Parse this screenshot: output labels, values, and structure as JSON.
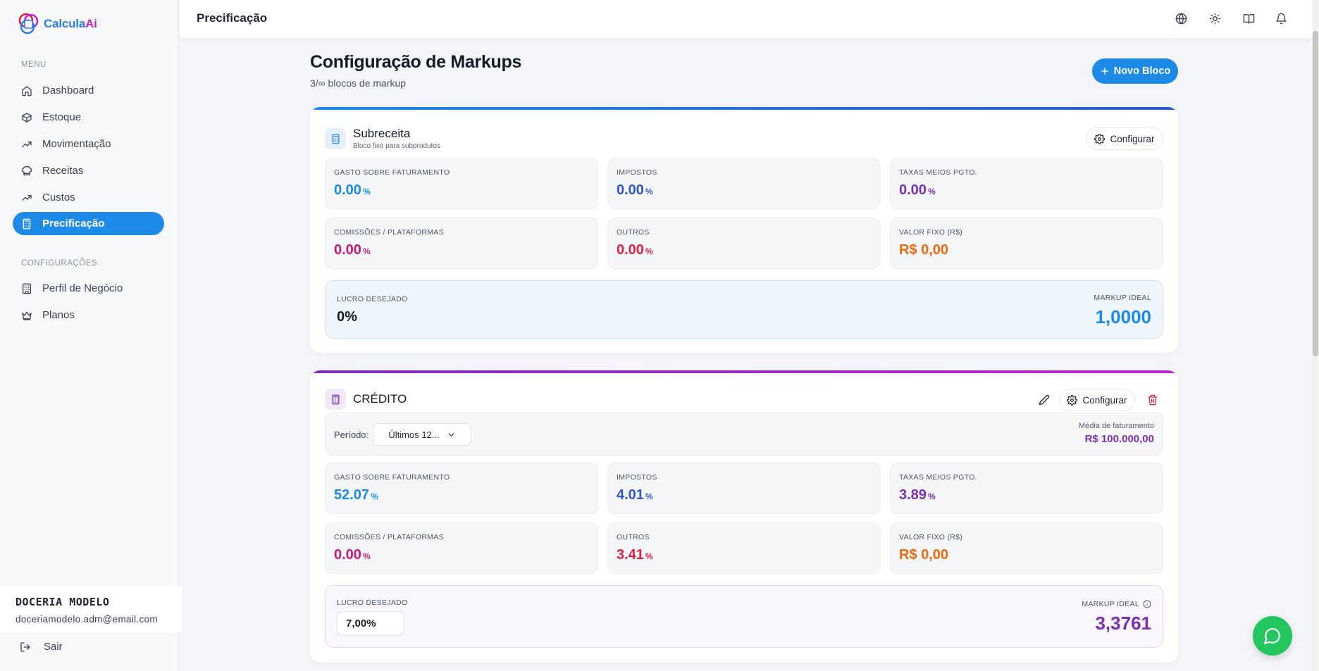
{
  "app": {
    "name_part1": "Calcula",
    "name_part2": "Ai"
  },
  "sidebar": {
    "menu_label": "MENU",
    "items": [
      {
        "label": "Dashboard",
        "icon": "home-icon"
      },
      {
        "label": "Estoque",
        "icon": "box-icon"
      },
      {
        "label": "Movimentação",
        "icon": "trending-icon"
      },
      {
        "label": "Receitas",
        "icon": "chef-hat-icon"
      },
      {
        "label": "Custos",
        "icon": "trending-icon"
      },
      {
        "label": "Precificação",
        "icon": "calculator-icon",
        "active": true
      }
    ],
    "config_label": "CONFIGURAÇÕES",
    "config_items": [
      {
        "label": "Perfil de Negócio",
        "icon": "building-icon"
      },
      {
        "label": "Planos",
        "icon": "crown-icon"
      }
    ],
    "user": {
      "name": "DOCERIA MODELO",
      "email": "doceriamodelo.adm@email.com"
    },
    "logout_label": "Sair"
  },
  "header": {
    "title": "Precificação"
  },
  "main": {
    "title": "Configuração de Markups",
    "subtitle": "3/∞ blocos de markup",
    "new_block_label": "Novo Bloco"
  },
  "blocks": [
    {
      "title": "Subreceita",
      "description": "Bloco fixo para subprodutos",
      "configure_label": "Configurar",
      "accent": "#1d64d8",
      "metrics": [
        {
          "label": "GASTO SOBRE FATURAMENTO",
          "value": "0.00",
          "unit": "%",
          "color": "#1d8ae8"
        },
        {
          "label": "IMPOSTOS",
          "value": "0.00",
          "unit": "%",
          "color": "#2f55c9"
        },
        {
          "label": "TAXAS MEIOS PGTO.",
          "value": "0.00",
          "unit": "%",
          "color": "#7b2fb5"
        },
        {
          "label": "COMISSÕES / PLATAFORMAS",
          "value": "0.00",
          "unit": "%",
          "color": "#c2187a"
        },
        {
          "label": "OUTROS",
          "value": "0.00",
          "unit": "%",
          "color": "#e11d48"
        },
        {
          "label": "VALOR FIXO (R$)",
          "value": "R$ 0,00",
          "unit": "",
          "color": "#ea6a0c"
        }
      ],
      "lucro_label": "LUCRO DESEJADO",
      "lucro_value": "0%",
      "markup_label": "MARKUP IDEAL",
      "markup_value": "1,0000",
      "markup_color": "#1d8ae8"
    },
    {
      "title": "CRÉDITO",
      "configure_label": "Configurar",
      "accent": "#8e1fb0",
      "period_label": "Período:",
      "period_value": "Últimos 12...",
      "avg_label": "Média de faturamento",
      "avg_value": "R$ 100.000,00",
      "metrics": [
        {
          "label": "GASTO SOBRE FATURAMENTO",
          "value": "52.07",
          "unit": "%",
          "color": "#1d8ae8"
        },
        {
          "label": "IMPOSTOS",
          "value": "4.01",
          "unit": "%",
          "color": "#2f55c9"
        },
        {
          "label": "TAXAS MEIOS PGTO.",
          "value": "3.89",
          "unit": "%",
          "color": "#7b2fb5"
        },
        {
          "label": "COMISSÕES / PLATAFORMAS",
          "value": "0.00",
          "unit": "%",
          "color": "#c2187a"
        },
        {
          "label": "OUTROS",
          "value": "3.41",
          "unit": "%",
          "color": "#e11d48"
        },
        {
          "label": "VALOR FIXO (R$)",
          "value": "R$ 0,00",
          "unit": "",
          "color": "#ea6a0c"
        }
      ],
      "lucro_label": "LUCRO DESEJADO",
      "lucro_value": "7,00%",
      "markup_label": "MARKUP IDEAL",
      "markup_value": "3,3761",
      "markup_color": "#7b2fb5"
    }
  ]
}
